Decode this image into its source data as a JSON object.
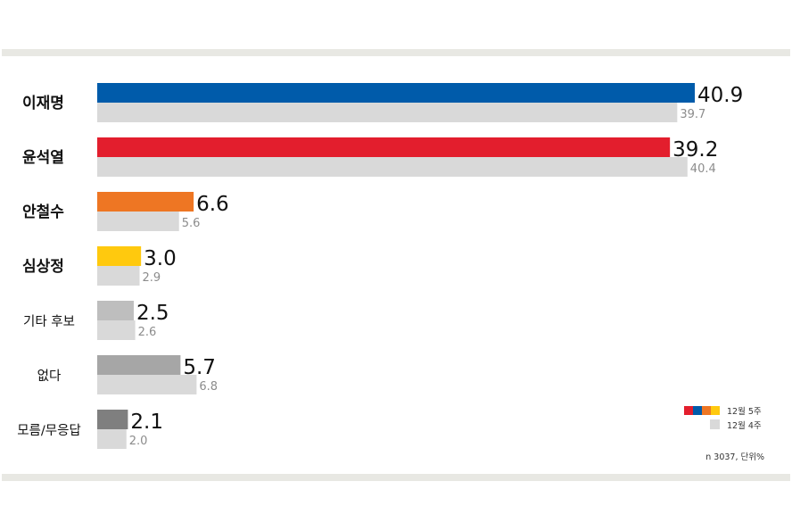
{
  "chart_data": {
    "type": "bar",
    "orientation": "horizontal",
    "categories": [
      "이재명",
      "윤석열",
      "안철수",
      "심상정",
      "기타 후보",
      "없다",
      "모름/무응답"
    ],
    "category_bold": [
      true,
      true,
      true,
      true,
      false,
      false,
      false
    ],
    "series": [
      {
        "name": "12월 5주",
        "values": [
          40.9,
          39.2,
          6.6,
          3.0,
          2.5,
          5.7,
          2.1
        ],
        "colors": [
          "#005BAA",
          "#E31E2D",
          "#EE7623",
          "#FFC90E",
          "#BEBEBE",
          "#A6A6A6",
          "#7F7F7F"
        ]
      },
      {
        "name": "12월 4주",
        "values": [
          39.7,
          40.4,
          5.6,
          2.9,
          2.6,
          6.8,
          2.0
        ],
        "color": "#D9D9D9"
      }
    ],
    "value_labels": [
      [
        "40.9",
        "39.2",
        "6.6",
        "3.0",
        "2.5",
        "5.7",
        "2.1"
      ],
      [
        "39.7",
        "40.4",
        "5.6",
        "2.9",
        "2.6",
        "6.8",
        "2.0"
      ]
    ],
    "xlim": [
      0,
      45
    ],
    "grid": false,
    "legend_position": "bottom-right",
    "legend_swatch_colors": [
      "#E31E2D",
      "#005BAA",
      "#EE7623",
      "#FFC90E"
    ],
    "note": "n 3037,  단위%"
  },
  "colors": {
    "frame_band": "#E8E8E3"
  }
}
